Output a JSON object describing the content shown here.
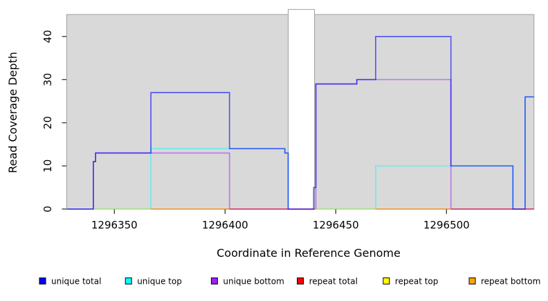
{
  "chart_data": {
    "type": "step-line",
    "title": "",
    "xlabel": "Coordinate in Reference Genome",
    "ylabel": "Read Coverage Depth",
    "x_ticks": [
      1296350,
      1296400,
      1296450,
      1296500
    ],
    "y_ticks": [
      0,
      10,
      20,
      30,
      40
    ],
    "xlim": [
      1296328.5,
      1296539.5
    ],
    "ylim": [
      0,
      45.1
    ],
    "grid": false,
    "plot_background": "#d9d9d9",
    "plot_border": "#9e9e9e",
    "masked_region": {
      "x1": 1296428.5,
      "x2": 1296440.4,
      "fill": "#ffffff"
    },
    "draw_order": [
      "unique top",
      "unique bottom",
      "repeat top",
      "repeat bottom",
      "repeat total",
      "unique total"
    ],
    "series": [
      {
        "name": "unique total",
        "color": "#0000FF",
        "line_opacity": 0.6,
        "segments": [
          [
            [
              1296328.5,
              0
            ],
            [
              1296340.5,
              11
            ],
            [
              1296341.5,
              13
            ],
            [
              1296366.5,
              27
            ],
            [
              1296402,
              14
            ],
            [
              1296427,
              13
            ],
            [
              1296428.5,
              0
            ],
            [
              1296440,
              5
            ],
            [
              1296441,
              29
            ],
            [
              1296459.5,
              30
            ],
            [
              1296468,
              40
            ],
            [
              1296502,
              10
            ],
            [
              1296530,
              0
            ],
            [
              1296535.5,
              26
            ],
            [
              1296539.5,
              26
            ]
          ]
        ]
      },
      {
        "name": "unique top",
        "color": "#00FFFF",
        "line_opacity": 0.5,
        "segments": [
          [
            [
              1296328.5,
              0
            ],
            [
              1296366.5,
              14
            ],
            [
              1296427,
              13
            ],
            [
              1296428.5,
              0
            ],
            [
              1296468,
              10
            ],
            [
              1296530,
              0
            ],
            [
              1296535.5,
              26
            ],
            [
              1296539.5,
              26
            ]
          ]
        ]
      },
      {
        "name": "unique bottom",
        "color": "#A020F0",
        "line_opacity": 0.5,
        "segments": [
          [
            [
              1296328.5,
              0
            ],
            [
              1296340.5,
              11
            ],
            [
              1296341.5,
              13
            ],
            [
              1296402,
              0
            ],
            [
              1296441,
              29
            ],
            [
              1296459.5,
              30
            ],
            [
              1296502,
              0
            ],
            [
              1296539.5,
              0
            ]
          ]
        ]
      },
      {
        "name": "repeat total",
        "color": "#FF0000",
        "line_opacity": 0.55,
        "segments": [
          [
            [
              1296402,
              0
            ],
            [
              1296440.5,
              0
            ]
          ],
          [
            [
              1296502,
              0
            ],
            [
              1296539.5,
              0
            ]
          ]
        ]
      },
      {
        "name": "repeat top",
        "color": "#EEEE00",
        "line_opacity": 0.45,
        "segments": [
          [
            [
              1296340.5,
              0
            ],
            [
              1296366.5,
              0
            ]
          ],
          [
            [
              1296440.5,
              0
            ],
            [
              1296468,
              0
            ]
          ]
        ]
      },
      {
        "name": "repeat bottom",
        "color": "#FF8C00",
        "line_opacity": 0.85,
        "segments": [
          [
            [
              1296366.5,
              0
            ],
            [
              1296402,
              0
            ]
          ],
          [
            [
              1296468,
              0
            ],
            [
              1296502,
              0
            ]
          ]
        ]
      }
    ]
  },
  "legend": {
    "items": [
      {
        "label": "unique total",
        "color": "#0000FF"
      },
      {
        "label": "unique top",
        "color": "#00FFFF"
      },
      {
        "label": "unique bottom",
        "color": "#A020F0"
      },
      {
        "label": "repeat total",
        "color": "#FF0000"
      },
      {
        "label": "repeat top",
        "color": "#FFFF00"
      },
      {
        "label": "repeat bottom",
        "color": "#FFA500"
      }
    ]
  }
}
